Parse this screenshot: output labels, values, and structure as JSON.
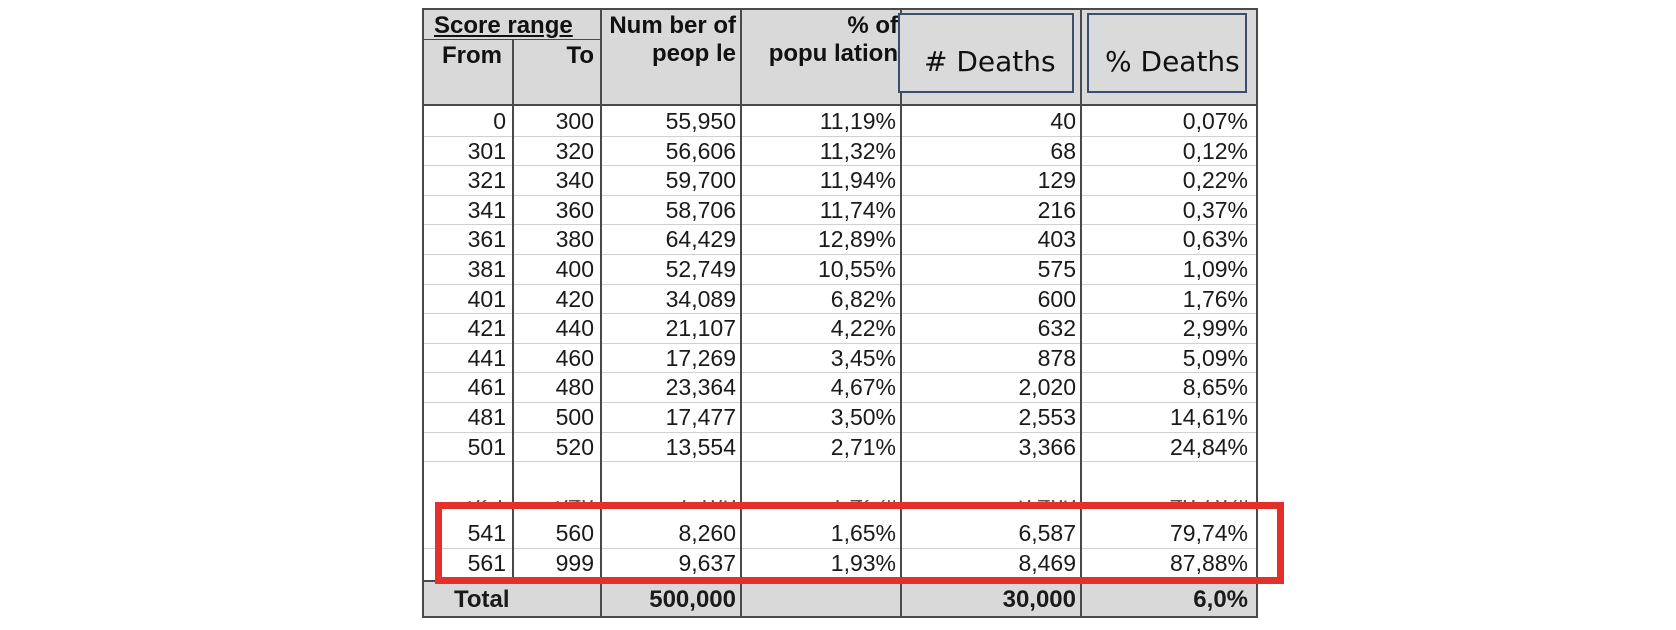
{
  "header": {
    "score_range": "Score range",
    "from": "From",
    "to": "To",
    "number_line1": "Num ber of",
    "number_line2": "peop le",
    "pct_line1": "% of",
    "pct_line2": "popu lation"
  },
  "overlays": {
    "deaths": "# Deaths",
    "pct_deaths": "% Deaths"
  },
  "rows": [
    {
      "from": "0",
      "to": "300",
      "people": "55,950",
      "pct_pop": "11,19%",
      "deaths": "40",
      "pct_deaths": "0,07%"
    },
    {
      "from": "301",
      "to": "320",
      "people": "56,606",
      "pct_pop": "11,32%",
      "deaths": "68",
      "pct_deaths": "0,12%"
    },
    {
      "from": "321",
      "to": "340",
      "people": "59,700",
      "pct_pop": "11,94%",
      "deaths": "129",
      "pct_deaths": "0,22%"
    },
    {
      "from": "341",
      "to": "360",
      "people": "58,706",
      "pct_pop": "11,74%",
      "deaths": "216",
      "pct_deaths": "0,37%"
    },
    {
      "from": "361",
      "to": "380",
      "people": "64,429",
      "pct_pop": "12,89%",
      "deaths": "403",
      "pct_deaths": "0,63%"
    },
    {
      "from": "381",
      "to": "400",
      "people": "52,749",
      "pct_pop": "10,55%",
      "deaths": "575",
      "pct_deaths": "1,09%"
    },
    {
      "from": "401",
      "to": "420",
      "people": "34,089",
      "pct_pop": "6,82%",
      "deaths": "600",
      "pct_deaths": "1,76%"
    },
    {
      "from": "421",
      "to": "440",
      "people": "21,107",
      "pct_pop": "4,22%",
      "deaths": "632",
      "pct_deaths": "2,99%"
    },
    {
      "from": "441",
      "to": "460",
      "people": "17,269",
      "pct_pop": "3,45%",
      "deaths": "878",
      "pct_deaths": "5,09%"
    },
    {
      "from": "461",
      "to": "480",
      "people": "23,364",
      "pct_pop": "4,67%",
      "deaths": "2,020",
      "pct_deaths": "8,65%"
    },
    {
      "from": "481",
      "to": "500",
      "people": "17,477",
      "pct_pop": "3,50%",
      "deaths": "2,553",
      "pct_deaths": "14,61%"
    },
    {
      "from": "501",
      "to": "520",
      "people": "13,554",
      "pct_pop": "2,71%",
      "deaths": "3,366",
      "pct_deaths": "24,84%"
    }
  ],
  "partial_row": {
    "from": "521",
    "to": "540",
    "people": "7,103",
    "pct_pop": "1,42%",
    "deaths": "3,463",
    "pct_deaths": "48,76%"
  },
  "highlighted_rows": [
    {
      "from": "541",
      "to": "560",
      "people": "8,260",
      "pct_pop": "1,65%",
      "deaths": "6,587",
      "pct_deaths": "79,74%"
    },
    {
      "from": "561",
      "to": "999",
      "people": "9,637",
      "pct_pop": "1,93%",
      "deaths": "8,469",
      "pct_deaths": "87,88%"
    }
  ],
  "total": {
    "label": "Total",
    "people": "500,000",
    "deaths": "30,000",
    "pct_deaths": "6,0%"
  },
  "colors": {
    "header_bg": "#d9d9d9",
    "highlight": "#e4302b",
    "overlay_border": "#3c4e70"
  }
}
